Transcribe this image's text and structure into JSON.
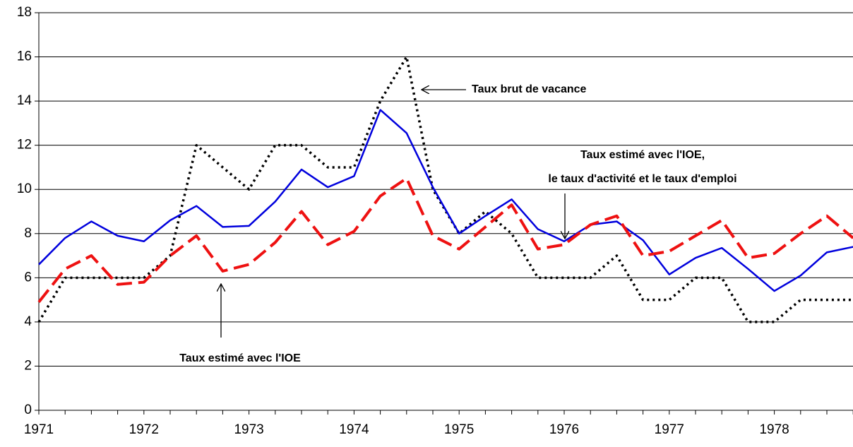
{
  "chart_data": {
    "type": "line",
    "categories": [
      "1971",
      null,
      null,
      null,
      "1972",
      null,
      null,
      null,
      "1973",
      null,
      null,
      null,
      "1974",
      null,
      null,
      null,
      "1975",
      null,
      null,
      null,
      "1976",
      null,
      null,
      null,
      "1977",
      null,
      null,
      null,
      "1978",
      null,
      null,
      null
    ],
    "series": [
      {
        "color": "#000000",
        "style": "dotted",
        "values": [
          4,
          6,
          6,
          6,
          6,
          7,
          12,
          11,
          10,
          12,
          12,
          11,
          11,
          14,
          16,
          10,
          8,
          9,
          8,
          6,
          6,
          6,
          7,
          5,
          5,
          6,
          6,
          4,
          4,
          5,
          5,
          5
        ]
      },
      {
        "color": "#0000dd",
        "style": "solid",
        "values": [
          6.6,
          7.8,
          8.55,
          7.9,
          7.65,
          8.6,
          9.25,
          8.3,
          8.35,
          9.45,
          10.9,
          10.1,
          10.6,
          13.6,
          12.55,
          10.1,
          8.0,
          8.8,
          9.55,
          8.2,
          7.65,
          8.4,
          8.55,
          7.7,
          6.15,
          6.9,
          7.35,
          6.4,
          5.4,
          6.1,
          7.15,
          7.4
        ]
      },
      {
        "color": "#ee1111",
        "style": "dashed",
        "values": [
          4.9,
          6.4,
          7.0,
          5.7,
          5.8,
          7.0,
          7.9,
          6.3,
          6.6,
          7.6,
          9.0,
          7.5,
          8.1,
          9.7,
          10.5,
          7.9,
          7.3,
          8.3,
          9.3,
          7.3,
          7.5,
          8.4,
          8.8,
          7.0,
          7.2,
          7.9,
          8.6,
          6.9,
          7.1,
          8.0,
          8.8,
          7.8
        ]
      }
    ],
    "ylim": [
      0,
      18
    ],
    "yticks": [
      0,
      2,
      4,
      6,
      8,
      10,
      12,
      14,
      16,
      18
    ],
    "grid": true,
    "annotations": [
      {
        "lines": [
          "Taux brut de vacance"
        ]
      },
      {
        "lines": [
          "Taux estimé avec l'IOE,",
          "le taux d'activité  et le taux d'emploi"
        ]
      },
      {
        "lines": [
          "Taux estimé avec l'IOE"
        ]
      }
    ]
  }
}
